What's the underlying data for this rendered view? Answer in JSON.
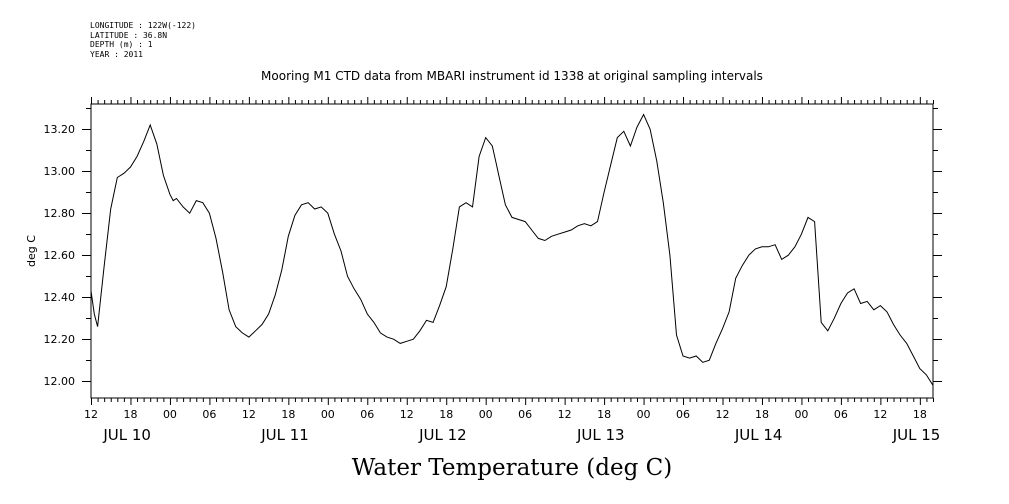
{
  "header": {
    "longitude": "LONGITUDE : 122W(-122)",
    "latitude": "LATITUDE : 36.8N",
    "depth": "DEPTH (m) : 1",
    "year": "YEAR : 2011"
  },
  "chart_data": {
    "type": "line",
    "title": "Mooring M1 CTD data from MBARI instrument id 1338 at original sampling intervals",
    "xlabel": "Water Temperature (deg C)",
    "ylabel": "deg C",
    "ylim": [
      11.92,
      13.32
    ],
    "yticks": [
      "12.00",
      "12.20",
      "12.40",
      "12.60",
      "12.80",
      "13.00",
      "13.20"
    ],
    "xlim_hours": [
      12,
      140
    ],
    "hour_ticks": [
      {
        "h": 12,
        "label": "12"
      },
      {
        "h": 18,
        "label": "18"
      },
      {
        "h": 24,
        "label": "00"
      },
      {
        "h": 30,
        "label": "06"
      },
      {
        "h": 36,
        "label": "12"
      },
      {
        "h": 42,
        "label": "18"
      },
      {
        "h": 48,
        "label": "00"
      },
      {
        "h": 54,
        "label": "06"
      },
      {
        "h": 60,
        "label": "12"
      },
      {
        "h": 66,
        "label": "18"
      },
      {
        "h": 72,
        "label": "00"
      },
      {
        "h": 78,
        "label": "06"
      },
      {
        "h": 84,
        "label": "12"
      },
      {
        "h": 90,
        "label": "18"
      },
      {
        "h": 96,
        "label": "00"
      },
      {
        "h": 102,
        "label": "06"
      },
      {
        "h": 108,
        "label": "12"
      },
      {
        "h": 114,
        "label": "18"
      },
      {
        "h": 120,
        "label": "00"
      },
      {
        "h": 126,
        "label": "06"
      },
      {
        "h": 132,
        "label": "12"
      },
      {
        "h": 138,
        "label": "18"
      }
    ],
    "date_labels": [
      {
        "h": 17.5,
        "label": "JUL 10"
      },
      {
        "h": 41.5,
        "label": "JUL 11"
      },
      {
        "h": 65.5,
        "label": "JUL 12"
      },
      {
        "h": 89.5,
        "label": "JUL 13"
      },
      {
        "h": 113.5,
        "label": "JUL 14"
      },
      {
        "h": 137.5,
        "label": "JUL 15"
      }
    ],
    "series": [
      {
        "x_hours": [
          12,
          12.5,
          13,
          14,
          15,
          16,
          17,
          18,
          19,
          20,
          21,
          22,
          23,
          24,
          24.5,
          25,
          26,
          27,
          28,
          29,
          30,
          31,
          32,
          33,
          34,
          35,
          36,
          37,
          38,
          39,
          40,
          41,
          42,
          43,
          44,
          45,
          46,
          47,
          48,
          49,
          50,
          51,
          52,
          53,
          54,
          55,
          56,
          57,
          58,
          59,
          60,
          61,
          62,
          63,
          64,
          65,
          66,
          67,
          68,
          69,
          70,
          71,
          72,
          73,
          73.5,
          74,
          75,
          76,
          77,
          78,
          79,
          80,
          81,
          82,
          83,
          84,
          85,
          86,
          87,
          88,
          89,
          90,
          91,
          92,
          93,
          94,
          95,
          96,
          97,
          98,
          99,
          100,
          101,
          102,
          103,
          104,
          105,
          106,
          107,
          108,
          109,
          110,
          111,
          112,
          113,
          114,
          115,
          116,
          117,
          118,
          119,
          120,
          121,
          122,
          123,
          124,
          125,
          126,
          127,
          128,
          129,
          130,
          131,
          132,
          133,
          134,
          135,
          136,
          137,
          138,
          139,
          140
        ],
        "values": [
          12.43,
          12.32,
          12.26,
          12.55,
          12.82,
          12.97,
          12.99,
          13.02,
          13.07,
          13.14,
          13.22,
          13.13,
          12.98,
          12.89,
          12.86,
          12.87,
          12.83,
          12.8,
          12.86,
          12.85,
          12.8,
          12.68,
          12.52,
          12.34,
          12.26,
          12.23,
          12.21,
          12.24,
          12.27,
          12.32,
          12.41,
          12.53,
          12.69,
          12.79,
          12.84,
          12.85,
          12.82,
          12.83,
          12.8,
          12.7,
          12.62,
          12.5,
          12.44,
          12.39,
          12.32,
          12.28,
          12.23,
          12.21,
          12.2,
          12.18,
          12.19,
          12.2,
          12.24,
          12.29,
          12.28,
          12.36,
          12.45,
          12.63,
          12.83,
          12.85,
          12.83,
          13.07,
          13.16,
          13.12,
          13.05,
          12.98,
          12.84,
          12.78,
          12.77,
          12.76,
          12.72,
          12.68,
          12.67,
          12.69,
          12.7,
          12.71,
          12.72,
          12.74,
          12.75,
          12.74,
          12.76,
          12.9,
          13.03,
          13.16,
          13.19,
          13.12,
          13.21,
          13.27,
          13.2,
          13.05,
          12.85,
          12.6,
          12.22,
          12.12,
          12.11,
          12.12,
          12.09,
          12.1,
          12.18,
          12.25,
          12.33,
          12.49,
          12.55,
          12.6,
          12.63,
          12.64,
          12.64,
          12.65,
          12.58,
          12.6,
          12.64,
          12.7,
          12.78,
          12.76,
          12.28,
          12.24,
          12.3,
          12.37,
          12.42,
          12.44,
          12.37,
          12.38,
          12.34,
          12.36,
          12.33,
          12.27,
          12.22,
          12.18,
          12.12,
          12.06,
          12.03,
          11.98
        ]
      }
    ],
    "grid": false,
    "legend": "none"
  }
}
